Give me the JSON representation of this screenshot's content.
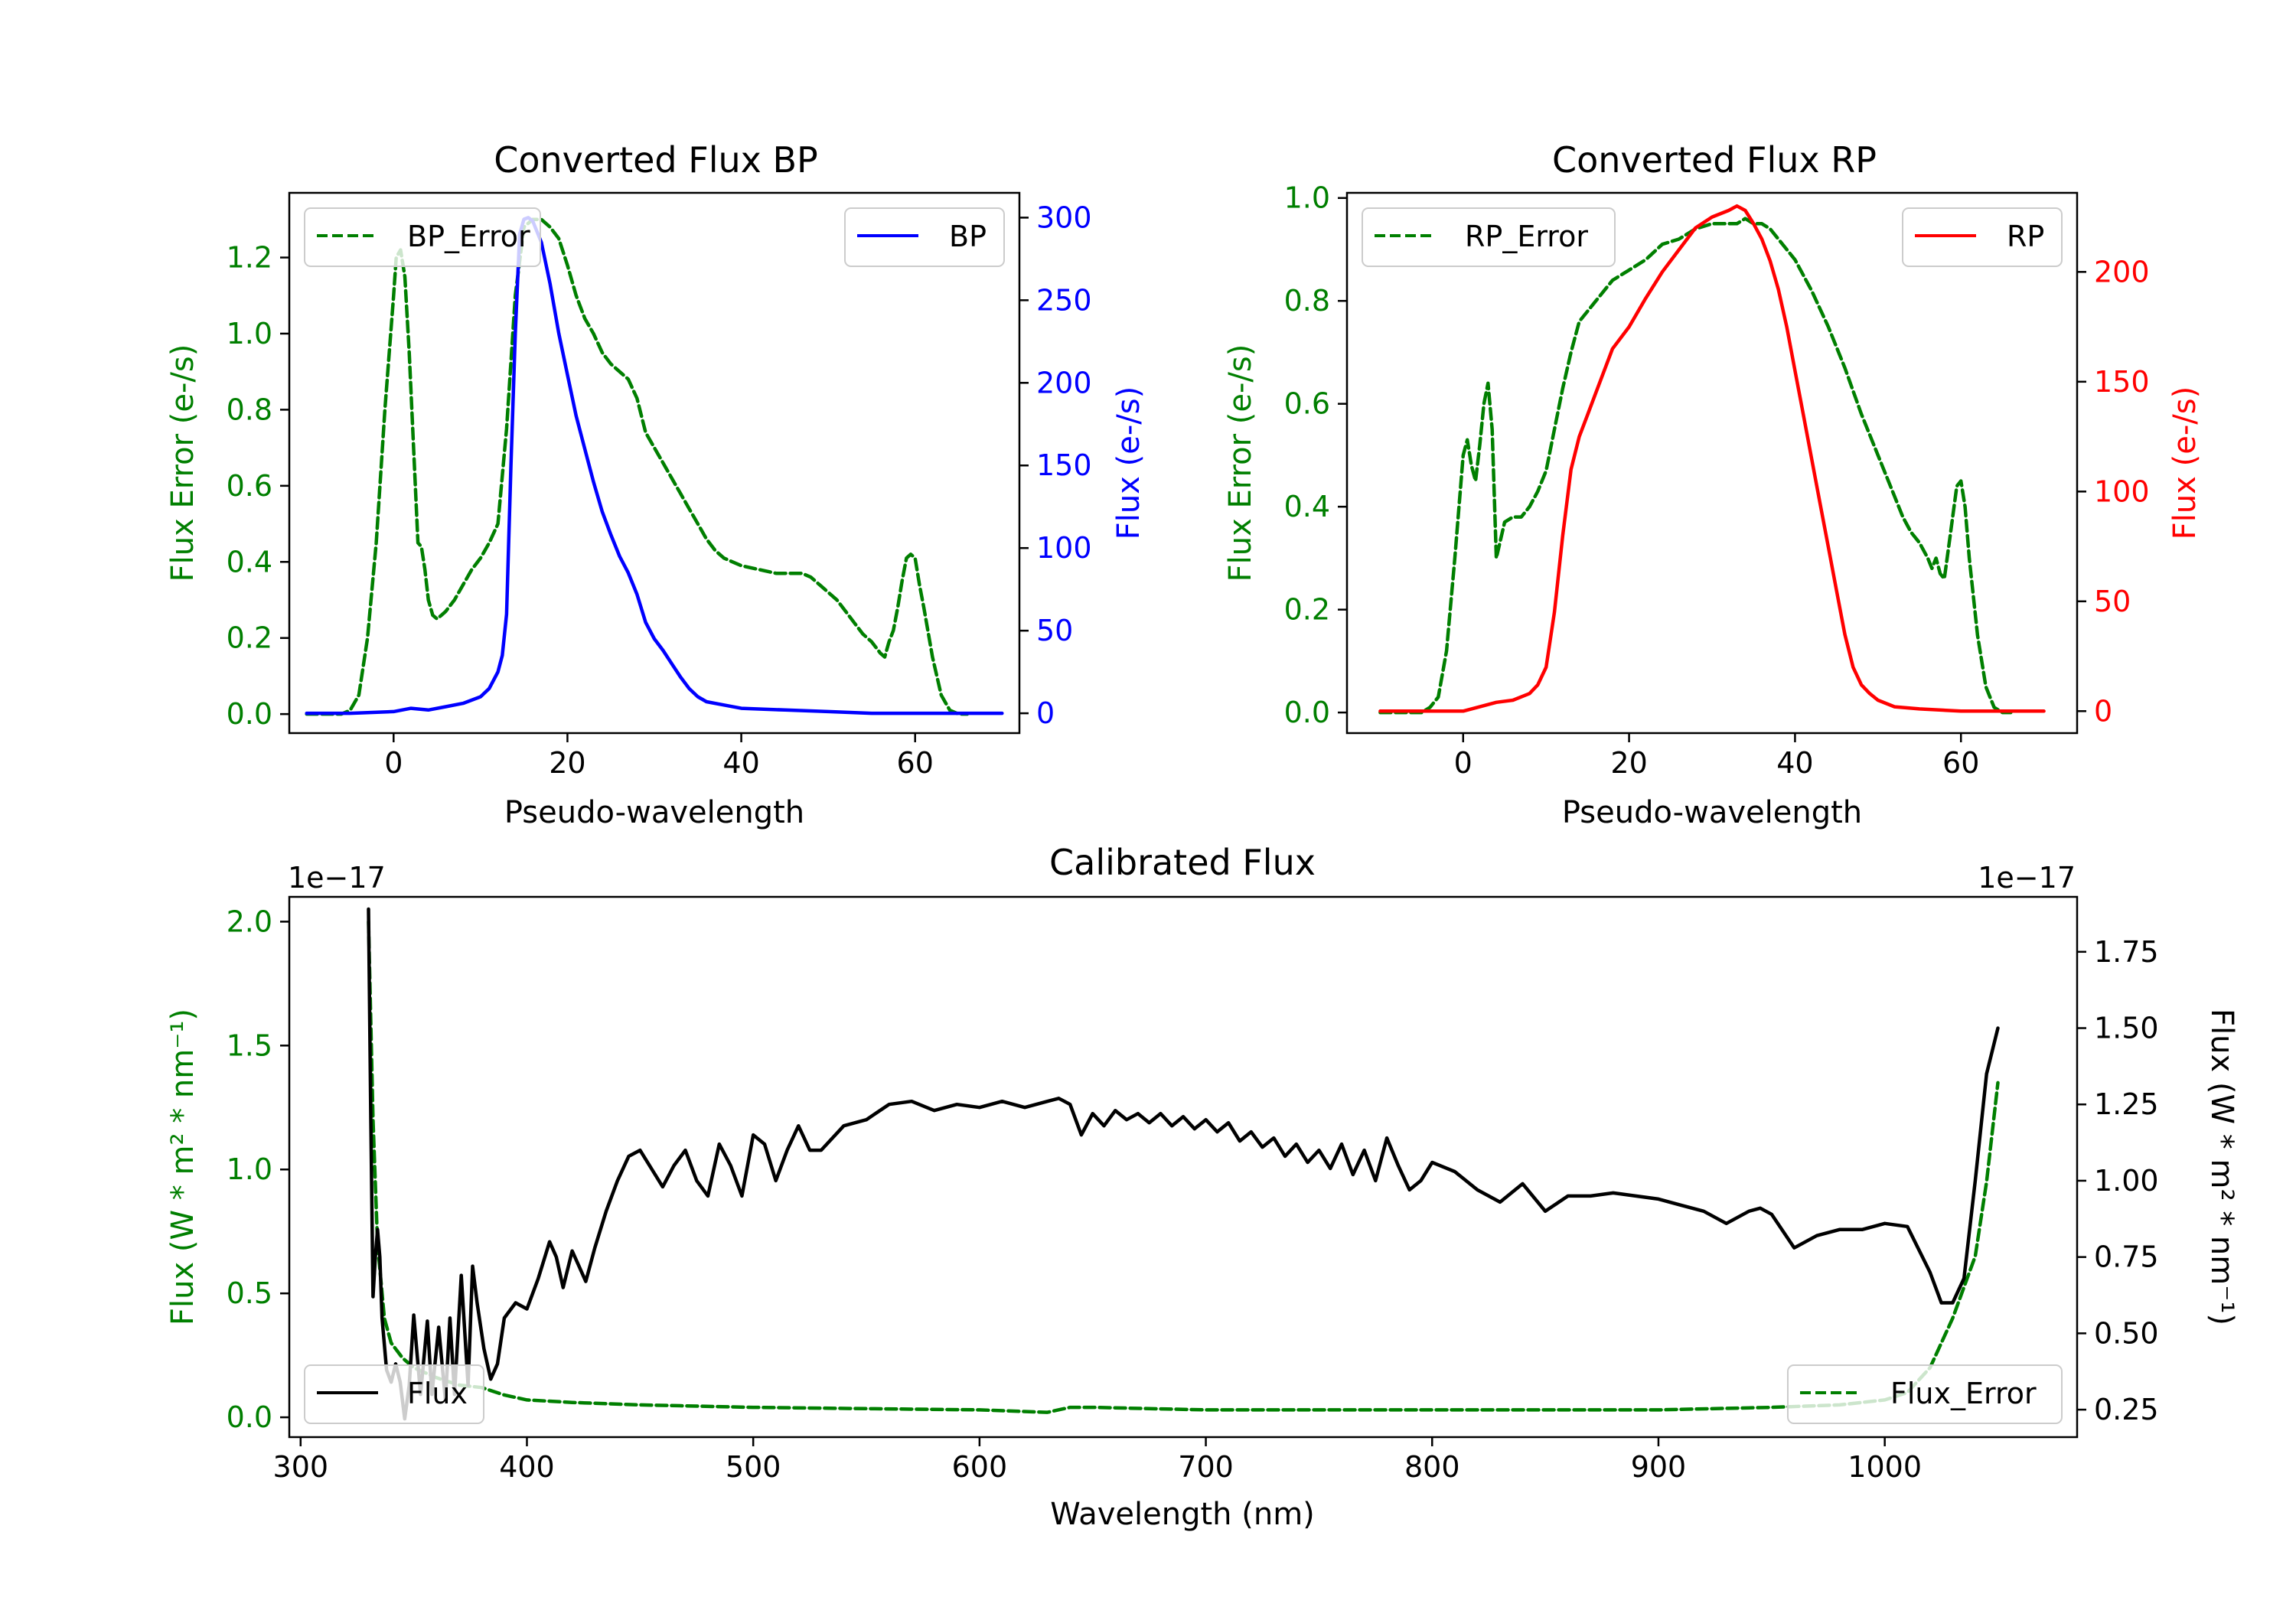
{
  "colors": {
    "green": "#007f00",
    "blue": "#0000ff",
    "red": "#ff0000",
    "black": "#000000"
  },
  "chart_data": [
    {
      "type": "line",
      "title": "Converted Flux BP",
      "xlabel": "Pseudo-wavelength",
      "ylabel_left": "Flux Error (e-/s)",
      "ylabel_right": "Flux (e-/s)",
      "xlim": [
        -12,
        72
      ],
      "ylim_left": [
        -0.05,
        1.37
      ],
      "ylim_right": [
        -12,
        315
      ],
      "xticks": [
        0,
        20,
        40,
        60
      ],
      "yticks_left": [
        0.0,
        0.2,
        0.4,
        0.6,
        0.8,
        1.0,
        1.2
      ],
      "yticks_right": [
        0,
        50,
        100,
        150,
        200,
        250,
        300
      ],
      "series": [
        {
          "name": "BP_Error",
          "axis": "left",
          "style": "dashed",
          "color": "green",
          "x": [
            -10,
            -6,
            -5,
            -4,
            -3,
            -2,
            -1,
            0,
            0.3,
            0.8,
            1.3,
            1.8,
            2.3,
            2.8,
            3.2,
            3.6,
            4,
            4.5,
            5,
            5.5,
            6,
            7,
            8,
            9,
            10,
            11,
            12,
            13,
            14,
            15,
            16,
            17,
            18,
            19,
            20,
            21,
            22,
            23,
            24,
            25,
            26,
            27,
            28,
            29,
            30,
            31,
            32,
            33,
            34,
            35,
            36,
            37,
            38,
            39,
            40,
            42,
            44,
            46,
            47,
            48,
            49,
            50,
            51,
            52,
            53,
            54,
            55,
            56,
            56.5,
            57,
            57.5,
            58,
            58.5,
            59,
            59.5,
            60,
            60.5,
            61,
            62,
            63,
            64,
            65,
            66
          ],
          "y": [
            0.0,
            0.0,
            0.01,
            0.05,
            0.2,
            0.45,
            0.8,
            1.1,
            1.2,
            1.22,
            1.15,
            0.95,
            0.7,
            0.45,
            0.44,
            0.38,
            0.3,
            0.26,
            0.25,
            0.26,
            0.27,
            0.3,
            0.34,
            0.38,
            0.41,
            0.45,
            0.5,
            0.75,
            1.1,
            1.28,
            1.3,
            1.3,
            1.28,
            1.25,
            1.18,
            1.1,
            1.04,
            1.0,
            0.95,
            0.92,
            0.9,
            0.88,
            0.83,
            0.74,
            0.7,
            0.66,
            0.62,
            0.58,
            0.54,
            0.5,
            0.46,
            0.43,
            0.41,
            0.4,
            0.39,
            0.38,
            0.37,
            0.37,
            0.37,
            0.36,
            0.34,
            0.32,
            0.3,
            0.27,
            0.24,
            0.21,
            0.19,
            0.16,
            0.15,
            0.19,
            0.22,
            0.28,
            0.35,
            0.41,
            0.42,
            0.41,
            0.34,
            0.28,
            0.15,
            0.05,
            0.01,
            0.0,
            0.0
          ]
        },
        {
          "name": "BP",
          "axis": "right",
          "style": "solid",
          "color": "blue",
          "x": [
            -10,
            -5,
            0,
            2,
            4,
            6,
            8,
            10,
            11,
            12,
            12.5,
            13,
            13.5,
            14,
            14.5,
            15,
            15.5,
            16,
            17,
            18,
            19,
            20,
            21,
            22,
            23,
            24,
            25,
            26,
            27,
            28,
            29,
            30,
            31,
            32,
            33,
            34,
            35,
            36,
            38,
            40,
            45,
            50,
            55,
            60,
            65,
            70
          ],
          "y": [
            0,
            0,
            1,
            3,
            2,
            4,
            6,
            10,
            15,
            25,
            35,
            60,
            150,
            230,
            290,
            299,
            300,
            298,
            285,
            260,
            230,
            205,
            180,
            160,
            140,
            122,
            108,
            95,
            85,
            72,
            55,
            45,
            38,
            30,
            22,
            15,
            10,
            7,
            5,
            3,
            2,
            1,
            0,
            0,
            0,
            0
          ]
        }
      ],
      "legend": [
        {
          "label": "BP_Error",
          "position": "upper-left"
        },
        {
          "label": "BP",
          "position": "upper-right"
        }
      ]
    },
    {
      "type": "line",
      "title": "Converted Flux RP",
      "xlabel": "Pseudo-wavelength",
      "ylabel_left": "Flux Error (e-/s)",
      "ylabel_right": "Flux (e-/s)",
      "xlim": [
        -14,
        74
      ],
      "ylim_left": [
        -0.04,
        1.01
      ],
      "ylim_right": [
        -10,
        236
      ],
      "xticks": [
        0,
        20,
        40,
        60
      ],
      "yticks_left": [
        0.0,
        0.2,
        0.4,
        0.6,
        0.8,
        1.0
      ],
      "yticks_right": [
        0,
        50,
        100,
        150,
        200
      ],
      "series": [
        {
          "name": "RP_Error",
          "axis": "left",
          "style": "dashed",
          "color": "green",
          "x": [
            -10,
            -5,
            -4,
            -3,
            -2,
            -1,
            0,
            0.5,
            1,
            1.5,
            2,
            2.5,
            3,
            3.5,
            4,
            5,
            6,
            7,
            8,
            9,
            10,
            11,
            12,
            13,
            14,
            15,
            16,
            18,
            20,
            22,
            24,
            26,
            28,
            30,
            32,
            33,
            34,
            35,
            36,
            37,
            38,
            40,
            42,
            44,
            46,
            48,
            50,
            52,
            53,
            54,
            55,
            56,
            56.5,
            57,
            57.5,
            58,
            58.5,
            59,
            59.5,
            60,
            60.5,
            61,
            62,
            63,
            64,
            65,
            66
          ],
          "y": [
            0.0,
            0.0,
            0.01,
            0.03,
            0.12,
            0.3,
            0.5,
            0.53,
            0.48,
            0.45,
            0.52,
            0.6,
            0.64,
            0.55,
            0.3,
            0.37,
            0.38,
            0.38,
            0.4,
            0.43,
            0.47,
            0.55,
            0.63,
            0.7,
            0.76,
            0.78,
            0.8,
            0.84,
            0.86,
            0.88,
            0.91,
            0.92,
            0.94,
            0.95,
            0.95,
            0.95,
            0.96,
            0.95,
            0.95,
            0.94,
            0.92,
            0.88,
            0.82,
            0.75,
            0.67,
            0.58,
            0.5,
            0.42,
            0.38,
            0.35,
            0.33,
            0.3,
            0.28,
            0.3,
            0.27,
            0.26,
            0.32,
            0.38,
            0.44,
            0.45,
            0.4,
            0.3,
            0.15,
            0.05,
            0.01,
            0.0,
            0.0
          ]
        },
        {
          "name": "RP",
          "axis": "right",
          "style": "solid",
          "color": "red",
          "x": [
            -10,
            -5,
            0,
            2,
            4,
            6,
            8,
            9,
            10,
            11,
            12,
            13,
            14,
            15,
            16,
            18,
            20,
            22,
            24,
            26,
            28,
            30,
            32,
            33,
            34,
            35,
            36,
            37,
            38,
            39,
            40,
            41,
            42,
            43,
            44,
            45,
            46,
            47,
            48,
            49,
            50,
            52,
            55,
            60,
            65,
            70
          ],
          "y": [
            0,
            0,
            0,
            2,
            4,
            5,
            8,
            12,
            20,
            45,
            80,
            110,
            125,
            135,
            145,
            165,
            175,
            188,
            200,
            210,
            220,
            225,
            228,
            230,
            228,
            222,
            215,
            205,
            192,
            175,
            155,
            135,
            115,
            95,
            75,
            55,
            35,
            20,
            12,
            8,
            5,
            2,
            1,
            0,
            0,
            0
          ]
        }
      ],
      "legend": [
        {
          "label": "RP_Error",
          "position": "upper-left"
        },
        {
          "label": "RP",
          "position": "upper-right"
        }
      ]
    },
    {
      "type": "line",
      "title": "Calibrated Flux",
      "xlabel": "Wavelength (nm)",
      "ylabel_left": "Flux (W * m² * nm⁻¹)",
      "ylabel_right": "Flux (W * m² * nm⁻¹)",
      "offset_left": "1e−17",
      "offset_right": "1e−17",
      "xlim": [
        295,
        1085
      ],
      "ylim_left": [
        -0.08,
        2.1
      ],
      "ylim_right": [
        0.16,
        1.93
      ],
      "xticks": [
        300,
        400,
        500,
        600,
        700,
        800,
        900,
        1000
      ],
      "yticks_left": [
        0.0,
        0.5,
        1.0,
        1.5,
        2.0
      ],
      "yticks_right": [
        0.25,
        0.5,
        0.75,
        1.0,
        1.25,
        1.5,
        1.75
      ],
      "series": [
        {
          "name": "Flux_Error",
          "axis": "left",
          "style": "dashed",
          "color": "green",
          "x": [
            330,
            332,
            334,
            337,
            340,
            345,
            350,
            360,
            370,
            380,
            390,
            400,
            420,
            450,
            500,
            550,
            600,
            630,
            640,
            650,
            700,
            750,
            800,
            850,
            900,
            950,
            980,
            1000,
            1010,
            1020,
            1030,
            1040,
            1045,
            1050
          ],
          "y": [
            2.0,
            1.2,
            0.7,
            0.4,
            0.3,
            0.24,
            0.2,
            0.16,
            0.13,
            0.12,
            0.09,
            0.07,
            0.06,
            0.05,
            0.04,
            0.035,
            0.03,
            0.02,
            0.04,
            0.04,
            0.03,
            0.03,
            0.03,
            0.03,
            0.03,
            0.04,
            0.05,
            0.07,
            0.1,
            0.2,
            0.4,
            0.65,
            0.95,
            1.35
          ]
        },
        {
          "name": "Flux",
          "axis": "right",
          "style": "solid",
          "color": "black",
          "x": [
            330,
            331,
            332,
            333,
            334,
            335,
            336,
            338,
            340,
            342,
            344,
            346,
            348,
            350,
            353,
            356,
            358,
            361,
            364,
            366,
            368,
            371,
            374,
            376,
            378,
            381,
            384,
            387,
            390,
            395,
            400,
            405,
            410,
            413,
            416,
            420,
            423,
            426,
            430,
            435,
            440,
            445,
            450,
            455,
            460,
            465,
            470,
            475,
            480,
            485,
            490,
            495,
            500,
            505,
            510,
            515,
            520,
            525,
            530,
            540,
            550,
            560,
            570,
            580,
            590,
            600,
            610,
            620,
            630,
            635,
            640,
            645,
            650,
            655,
            660,
            665,
            670,
            675,
            680,
            685,
            690,
            695,
            700,
            705,
            710,
            715,
            720,
            725,
            730,
            735,
            740,
            745,
            750,
            755,
            760,
            765,
            770,
            775,
            780,
            785,
            790,
            795,
            800,
            810,
            820,
            830,
            840,
            850,
            860,
            870,
            880,
            890,
            900,
            910,
            920,
            930,
            940,
            945,
            950,
            960,
            970,
            980,
            990,
            1000,
            1010,
            1020,
            1025,
            1030,
            1035,
            1040,
            1045,
            1050
          ],
          "y": [
            1.89,
            1.2,
            0.62,
            0.75,
            0.84,
            0.75,
            0.55,
            0.38,
            0.34,
            0.4,
            0.34,
            0.22,
            0.33,
            0.56,
            0.3,
            0.54,
            0.3,
            0.52,
            0.28,
            0.55,
            0.3,
            0.69,
            0.33,
            0.72,
            0.6,
            0.45,
            0.35,
            0.4,
            0.55,
            0.6,
            0.58,
            0.68,
            0.8,
            0.75,
            0.65,
            0.77,
            0.72,
            0.67,
            0.78,
            0.9,
            1.0,
            1.08,
            1.1,
            1.04,
            0.98,
            1.05,
            1.1,
            1.0,
            0.95,
            1.12,
            1.05,
            0.95,
            1.15,
            1.12,
            1.0,
            1.1,
            1.18,
            1.1,
            1.1,
            1.18,
            1.2,
            1.25,
            1.26,
            1.23,
            1.25,
            1.24,
            1.26,
            1.24,
            1.26,
            1.27,
            1.25,
            1.15,
            1.22,
            1.18,
            1.23,
            1.2,
            1.22,
            1.19,
            1.22,
            1.18,
            1.21,
            1.17,
            1.2,
            1.16,
            1.19,
            1.13,
            1.16,
            1.11,
            1.14,
            1.08,
            1.12,
            1.06,
            1.1,
            1.04,
            1.12,
            1.02,
            1.1,
            1.0,
            1.14,
            1.05,
            0.97,
            1.0,
            1.06,
            1.03,
            0.97,
            0.93,
            0.99,
            0.9,
            0.95,
            0.95,
            0.96,
            0.95,
            0.94,
            0.92,
            0.9,
            0.86,
            0.9,
            0.91,
            0.89,
            0.78,
            0.82,
            0.84,
            0.84,
            0.86,
            0.85,
            0.7,
            0.6,
            0.6,
            0.68,
            1.0,
            1.35,
            1.5
          ]
        }
      ],
      "legend": [
        {
          "label": "Flux",
          "position": "lower-left"
        },
        {
          "label": "Flux_Error",
          "position": "lower-right"
        }
      ]
    }
  ]
}
